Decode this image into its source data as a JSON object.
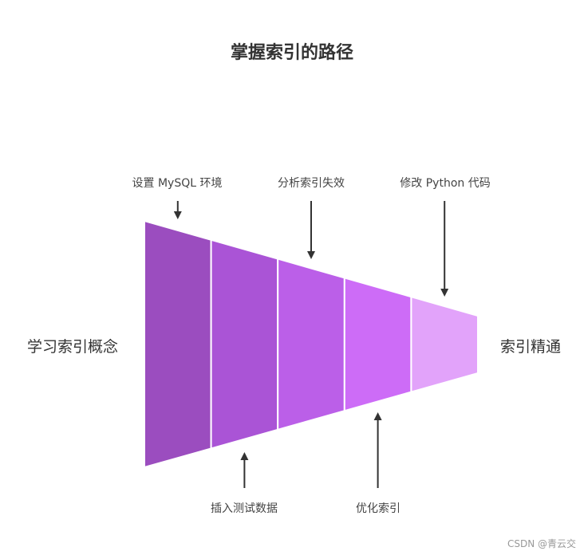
{
  "title": "掌握索引的路径",
  "start_label": "学习索引概念",
  "end_label": "索引精通",
  "steps": [
    {
      "label": "设置 MySQL 环境",
      "color": "#9b4dbf"
    },
    {
      "label": "插入测试数据",
      "color": "#aa54d6"
    },
    {
      "label": "分析索引失效",
      "color": "#bb5fe8"
    },
    {
      "label": "优化索引",
      "color": "#cd6cf7"
    },
    {
      "label": "修改 Python 代码",
      "color": "#e2a3fa"
    }
  ],
  "watermark": "CSDN @青云交"
}
